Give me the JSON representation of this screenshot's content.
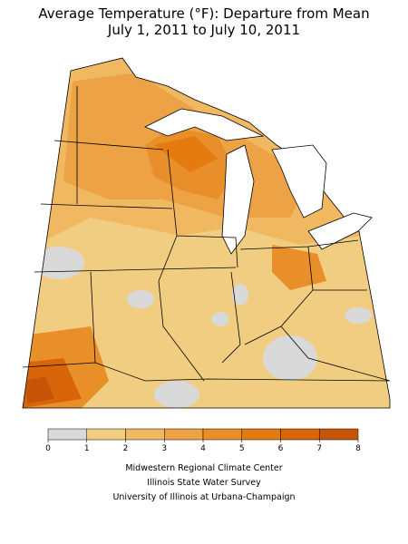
{
  "header": {
    "title": [
      "Average Temperature (°F): Departure from Mean",
      "July 1, 2011 to July 10, 2011"
    ]
  },
  "legend": {
    "ticks": [
      0,
      1,
      2,
      3,
      4,
      5,
      6,
      7,
      8
    ],
    "colors": [
      "#d9d9d9",
      "#f0cd80",
      "#f0b860",
      "#eca245",
      "#e98f2a",
      "#e57a10",
      "#d8650a",
      "#c65508"
    ]
  },
  "credits": [
    "Midwestern Regional Climate Center",
    "Illinois State Water Survey",
    "University of Illinois at Urbana-Champaign"
  ]
}
